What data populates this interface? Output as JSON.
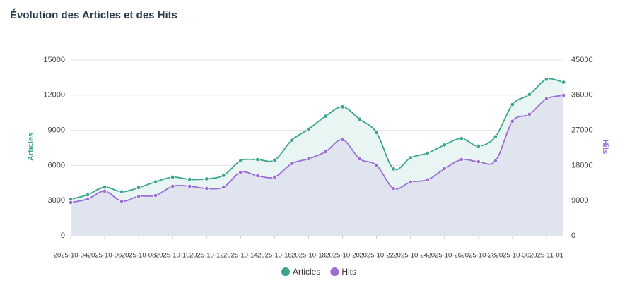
{
  "chart_data": {
    "type": "line",
    "title": "Évolution des Articles et des Hits",
    "y_label": "Articles",
    "y2_label": "Hits",
    "categories": [
      "2025-10-04",
      null,
      "2025-10-06",
      null,
      "2025-10-08",
      null,
      "2025-10-10",
      null,
      "2025-10-12",
      null,
      "2025-10-14",
      null,
      "2025-10-16",
      null,
      "2025-10-18",
      null,
      "2025-10-20",
      null,
      "2025-10-22",
      null,
      "2025-10-24",
      null,
      "2025-10-26",
      null,
      "2025-10-28",
      null,
      "2025-10-30",
      null,
      "2025-11-01",
      null
    ],
    "series": [
      {
        "name": "Articles",
        "color": "#3aa48f",
        "fill": "#e8f5f2",
        "axis": "y",
        "values": [
          3100,
          3500,
          4150,
          3750,
          4100,
          4600,
          5000,
          4800,
          4850,
          5150,
          6400,
          6500,
          6450,
          8150,
          9100,
          10200,
          11000,
          9950,
          8800,
          5700,
          6650,
          7050,
          7750,
          8300,
          7650,
          8450,
          11200,
          12050,
          13350,
          13100
        ]
      },
      {
        "name": "Hits",
        "color": "#9b6dd6",
        "fill": "#dfe4ef",
        "axis": "y2",
        "values": [
          8500,
          9400,
          11400,
          8850,
          10100,
          10300,
          12650,
          12650,
          12100,
          12450,
          16250,
          15350,
          15000,
          18450,
          19700,
          21500,
          24600,
          19700,
          18050,
          12100,
          13750,
          14300,
          17150,
          19500,
          18950,
          19150,
          29300,
          31100,
          35050,
          35950
        ]
      }
    ],
    "ylim": [
      0,
      15000
    ],
    "yticks": [
      0,
      3000,
      6000,
      9000,
      12000,
      15000
    ],
    "y2lim": [
      0,
      45000
    ],
    "y2ticks": [
      0,
      9000,
      18000,
      27000,
      36000,
      45000
    ],
    "grid": true,
    "legend": "bottom"
  }
}
